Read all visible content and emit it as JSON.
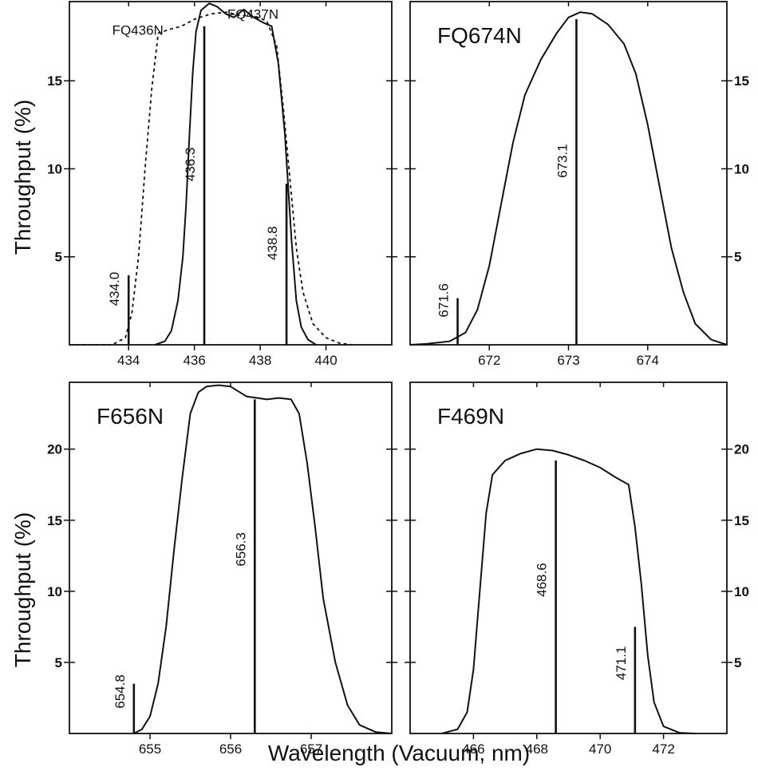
{
  "figure": {
    "ylabel": "Throughput (%)",
    "xlabel": "Wavelength (Vacuum, nm)"
  },
  "chart_data": [
    {
      "type": "line",
      "id": "p1",
      "title": "",
      "xlim": [
        432.2,
        442.0
      ],
      "ylim": [
        0,
        19.5
      ],
      "xticks": [
        434,
        436,
        438,
        440
      ],
      "yticks": [
        5,
        10,
        15
      ],
      "ytick_side": "left",
      "ytick_bold": true,
      "grid": false,
      "series": [
        {
          "name": "FQ437N",
          "style": "solid",
          "label_at": [
            437.0,
            18.8
          ],
          "points": [
            [
              434.8,
              0
            ],
            [
              435.1,
              0.2
            ],
            [
              435.3,
              0.8
            ],
            [
              435.5,
              2.5
            ],
            [
              435.65,
              5
            ],
            [
              435.75,
              8
            ],
            [
              435.85,
              12
            ],
            [
              435.95,
              15.5
            ],
            [
              436.05,
              17.8
            ],
            [
              436.2,
              19.0
            ],
            [
              436.45,
              19.4
            ],
            [
              436.7,
              19.2
            ],
            [
              436.95,
              18.8
            ],
            [
              437.2,
              18.6
            ],
            [
              437.5,
              19.05
            ],
            [
              437.8,
              18.6
            ],
            [
              438.1,
              18.3
            ],
            [
              438.35,
              18.1
            ],
            [
              438.55,
              16
            ],
            [
              438.75,
              12
            ],
            [
              438.95,
              6
            ],
            [
              439.1,
              2.5
            ],
            [
              439.25,
              1.0
            ],
            [
              439.45,
              0.3
            ],
            [
              439.7,
              0
            ]
          ]
        },
        {
          "name": "FQ436N",
          "style": "dashed",
          "label_at": [
            433.5,
            17.9
          ],
          "points": [
            [
              432.2,
              0
            ],
            [
              433.5,
              0
            ],
            [
              433.9,
              0.4
            ],
            [
              434.1,
              1.8
            ],
            [
              434.3,
              5
            ],
            [
              434.5,
              10
            ],
            [
              434.7,
              14.5
            ],
            [
              434.9,
              17.7
            ],
            [
              435.2,
              17.9
            ],
            [
              435.6,
              18.1
            ],
            [
              436.0,
              18.5
            ],
            [
              436.5,
              18.8
            ],
            [
              437.0,
              18.9
            ],
            [
              437.4,
              18.7
            ],
            [
              437.8,
              18.7
            ],
            [
              438.2,
              18.4
            ],
            [
              438.5,
              17.0
            ],
            [
              438.7,
              13.5
            ],
            [
              438.9,
              9.5
            ],
            [
              439.1,
              5.5
            ],
            [
              439.3,
              3
            ],
            [
              439.6,
              1.2
            ],
            [
              440.0,
              0.4
            ],
            [
              440.4,
              0.1
            ],
            [
              440.8,
              0
            ]
          ]
        }
      ],
      "lines": [
        {
          "x": 434.0,
          "label": "434.0",
          "height": 3.95
        },
        {
          "x": 436.3,
          "label": "436.3",
          "height": 18.1
        },
        {
          "x": 438.8,
          "label": "438.8",
          "height": 9.15
        }
      ]
    },
    {
      "type": "line",
      "id": "p2",
      "title": "FQ674N",
      "xlim": [
        671.0,
        675.0
      ],
      "ylim": [
        0,
        19.5
      ],
      "xticks": [
        672,
        673,
        674
      ],
      "yticks": [
        5,
        10,
        15
      ],
      "ytick_side": "right",
      "ytick_bold": true,
      "grid": false,
      "series": [
        {
          "name": "",
          "style": "solid",
          "points": [
            [
              671.0,
              0
            ],
            [
              671.2,
              0.05
            ],
            [
              671.5,
              0.2
            ],
            [
              671.7,
              0.7
            ],
            [
              671.85,
              2
            ],
            [
              672.0,
              4.5
            ],
            [
              672.15,
              8
            ],
            [
              672.3,
              11.5
            ],
            [
              672.45,
              14.2
            ],
            [
              672.65,
              16.2
            ],
            [
              672.85,
              17.7
            ],
            [
              673.0,
              18.6
            ],
            [
              673.15,
              18.9
            ],
            [
              673.3,
              18.8
            ],
            [
              673.5,
              18.2
            ],
            [
              673.7,
              17.1
            ],
            [
              673.85,
              15.4
            ],
            [
              674.0,
              12.5
            ],
            [
              674.15,
              9
            ],
            [
              674.3,
              5.5
            ],
            [
              674.45,
              3.0
            ],
            [
              674.6,
              1.2
            ],
            [
              674.8,
              0.3
            ],
            [
              675.0,
              0
            ]
          ]
        }
      ],
      "lines": [
        {
          "x": 671.6,
          "label": "671.6",
          "height": 2.65
        },
        {
          "x": 673.1,
          "label": "673.1",
          "height": 18.5
        }
      ]
    },
    {
      "type": "line",
      "id": "p3",
      "title": "F656N",
      "xlim": [
        654.0,
        658.0
      ],
      "ylim": [
        0,
        24.7
      ],
      "xticks": [
        655,
        656,
        657
      ],
      "yticks": [
        5,
        10,
        15,
        20
      ],
      "ytick_side": "left",
      "ytick_bold": true,
      "grid": false,
      "series": [
        {
          "name": "",
          "style": "solid",
          "points": [
            [
              654.8,
              0
            ],
            [
              654.9,
              0.3
            ],
            [
              655.0,
              1.2
            ],
            [
              655.1,
              3.5
            ],
            [
              655.2,
              7.5
            ],
            [
              655.3,
              13
            ],
            [
              655.4,
              18
            ],
            [
              655.5,
              22.5
            ],
            [
              655.6,
              24.0
            ],
            [
              655.7,
              24.4
            ],
            [
              655.85,
              24.5
            ],
            [
              656.0,
              24.4
            ],
            [
              656.2,
              23.7
            ],
            [
              656.45,
              23.5
            ],
            [
              656.6,
              23.6
            ],
            [
              656.75,
              23.5
            ],
            [
              656.85,
              22.5
            ],
            [
              656.95,
              19
            ],
            [
              657.05,
              14.5
            ],
            [
              657.15,
              9.5
            ],
            [
              657.3,
              5
            ],
            [
              657.45,
              2
            ],
            [
              657.6,
              0.6
            ],
            [
              657.8,
              0.1
            ],
            [
              658.0,
              0
            ]
          ]
        }
      ],
      "lines": [
        {
          "x": 654.8,
          "label": "654.8",
          "height": 3.5
        },
        {
          "x": 656.3,
          "label": "656.3",
          "height": 23.5
        }
      ]
    },
    {
      "type": "line",
      "id": "p4",
      "title": "F469N",
      "xlim": [
        464.0,
        474.0
      ],
      "ylim": [
        0,
        24.7
      ],
      "xticks": [
        466,
        468,
        470,
        472
      ],
      "yticks": [
        5,
        10,
        15,
        20
      ],
      "ytick_side": "right",
      "ytick_bold": true,
      "grid": false,
      "series": [
        {
          "name": "",
          "style": "solid",
          "points": [
            [
              465.0,
              0
            ],
            [
              465.5,
              0.3
            ],
            [
              465.8,
              1.5
            ],
            [
              466.0,
              4.5
            ],
            [
              466.2,
              10
            ],
            [
              466.4,
              15.5
            ],
            [
              466.6,
              18.2
            ],
            [
              467.0,
              19.2
            ],
            [
              467.5,
              19.7
            ],
            [
              468.0,
              20.0
            ],
            [
              468.5,
              19.9
            ],
            [
              469.0,
              19.6
            ],
            [
              469.5,
              19.2
            ],
            [
              470.0,
              18.7
            ],
            [
              470.5,
              18.0
            ],
            [
              470.9,
              17.5
            ],
            [
              471.1,
              14.5
            ],
            [
              471.3,
              10.5
            ],
            [
              471.5,
              5.5
            ],
            [
              471.7,
              2.2
            ],
            [
              472.0,
              0.5
            ],
            [
              472.5,
              0.05
            ],
            [
              473.0,
              0
            ]
          ]
        }
      ],
      "lines": [
        {
          "x": 468.6,
          "label": "468.6",
          "height": 19.2
        },
        {
          "x": 471.1,
          "label": "471.1",
          "height": 7.5
        }
      ]
    }
  ]
}
